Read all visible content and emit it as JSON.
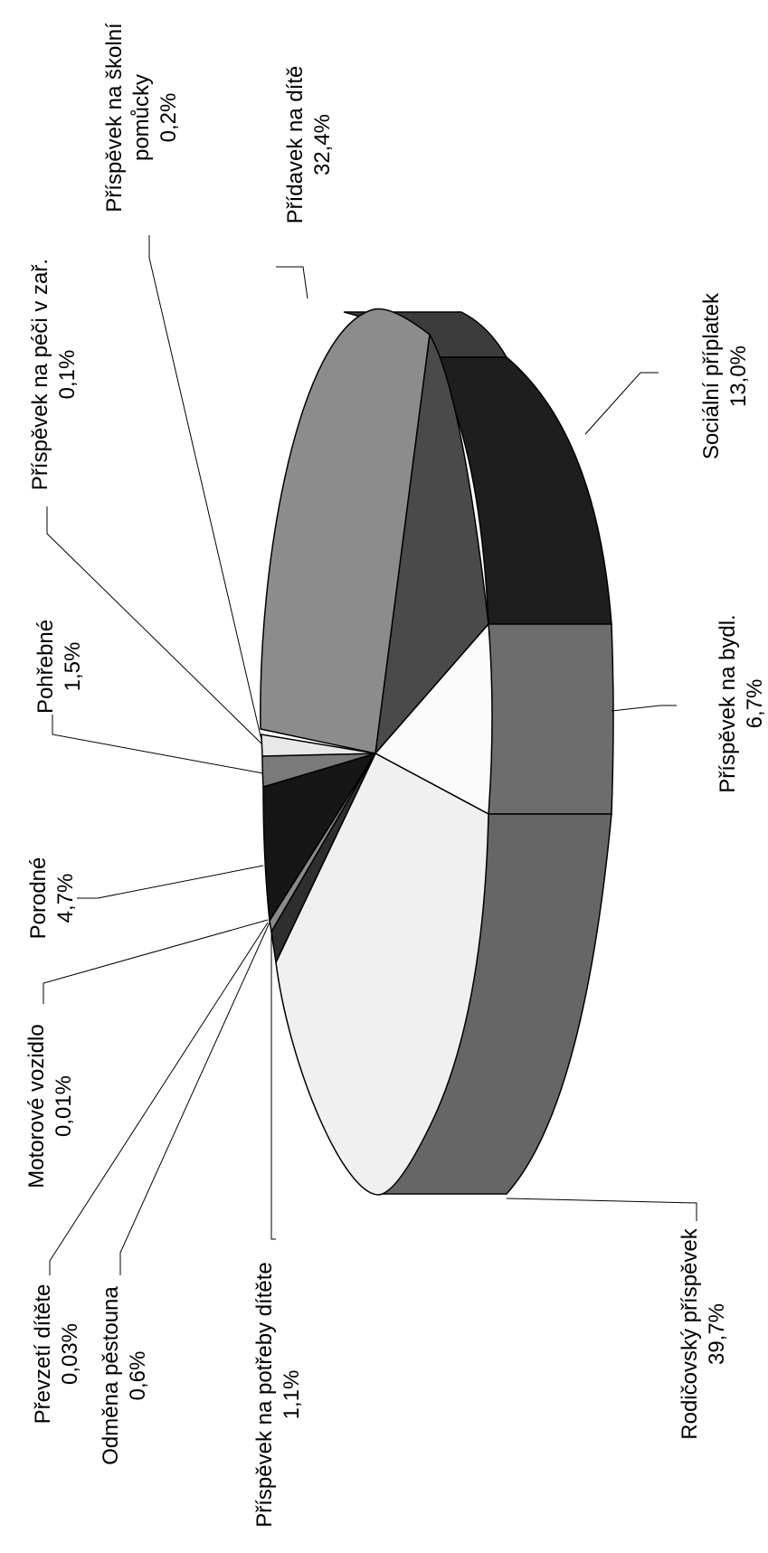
{
  "chart_data": {
    "type": "pie",
    "style": "3d",
    "orientation": "rotated-90-ccw",
    "title": "",
    "slices": [
      {
        "name": "Sociální příplatek",
        "pct_label": "13,0%",
        "value": 13.0,
        "color": "#212121"
      },
      {
        "name": "Příspěvek na bydl.",
        "pct_label": "6,7%",
        "value": 6.7,
        "color": "#fbfbfb"
      },
      {
        "name": "Rodičovský příspěvek",
        "pct_label": "39,7%",
        "value": 39.7,
        "color": "#f0f0f0"
      },
      {
        "name": "Příspěvek na potřeby dítěte",
        "pct_label": "1,1%",
        "value": 1.1,
        "color": "#2e2e2e"
      },
      {
        "name": "Odměna pěstouna",
        "pct_label": "0,6%",
        "value": 0.6,
        "color": "#8a8a8a"
      },
      {
        "name": "Převzetí dítěte",
        "pct_label": "0,03%",
        "value": 0.03,
        "color": "#ffffff"
      },
      {
        "name": "Motorové vozidlo",
        "pct_label": "0,01%",
        "value": 0.01,
        "color": "#000000"
      },
      {
        "name": "Porodné",
        "pct_label": "4,7%",
        "value": 4.7,
        "color": "#161616"
      },
      {
        "name": "Pohřebné",
        "pct_label": "1,5%",
        "value": 1.5,
        "color": "#7a7a7a"
      },
      {
        "name": "Příspěvek na péči v zař.",
        "pct_label": "0,1%",
        "value": 0.1,
        "color": "#ffffff"
      },
      {
        "name": "Příspěvek na školní pomůcky",
        "pct_label": "0,2%",
        "value": 0.2,
        "color": "#e8e8e8"
      },
      {
        "name": "Přídavek na dítě",
        "pct_label": "32,4%",
        "value": 32.4,
        "color": "#8c8c8c"
      }
    ],
    "extra_wedge_color": "#4a4a4a",
    "side_colors": {
      "sociální": "#1e1e1e",
      "bydlení": "#6d6d6d",
      "rodičovský": "#666666",
      "přídavek": "#3c3c3c"
    }
  }
}
